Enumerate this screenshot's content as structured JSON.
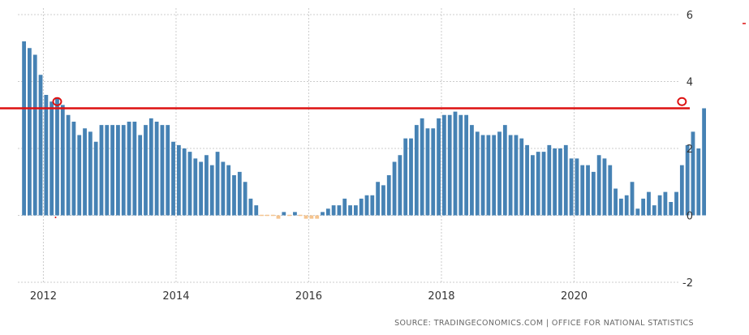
{
  "chart_data": {
    "type": "bar",
    "title": "",
    "xlabel": "",
    "ylabel": "",
    "ylim": [
      -2,
      6
    ],
    "grid": true,
    "x_start": "2011-09",
    "y_ticks": [
      {
        "value": 6,
        "label": "6"
      },
      {
        "value": 4,
        "label": "4"
      },
      {
        "value": 2,
        "label": "2"
      },
      {
        "value": 0,
        "label": "0"
      },
      {
        "value": -2,
        "label": "-2"
      }
    ],
    "x_ticks": [
      {
        "date": "2012-01",
        "label": "2012"
      },
      {
        "date": "2014-01",
        "label": "2014"
      },
      {
        "date": "2016-01",
        "label": "2016"
      },
      {
        "date": "2018-01",
        "label": "2018"
      },
      {
        "date": "2020-01",
        "label": "2020"
      }
    ],
    "values": [
      5.2,
      5.0,
      4.8,
      4.2,
      3.6,
      3.4,
      3.5,
      3.3,
      3.0,
      2.8,
      2.4,
      2.6,
      2.5,
      2.2,
      2.7,
      2.7,
      2.7,
      2.7,
      2.7,
      2.8,
      2.8,
      2.4,
      2.7,
      2.9,
      2.8,
      2.7,
      2.7,
      2.2,
      2.1,
      2.0,
      1.9,
      1.7,
      1.6,
      1.8,
      1.5,
      1.9,
      1.6,
      1.5,
      1.2,
      1.3,
      1.0,
      0.5,
      0.3,
      0.0,
      0.0,
      0.0,
      -0.1,
      0.1,
      0.0,
      0.1,
      0.0,
      -0.1,
      -0.1,
      -0.1,
      0.1,
      0.2,
      0.3,
      0.3,
      0.5,
      0.3,
      0.3,
      0.5,
      0.6,
      0.6,
      1.0,
      0.9,
      1.2,
      1.6,
      1.8,
      2.3,
      2.3,
      2.7,
      2.9,
      2.6,
      2.6,
      2.9,
      3.0,
      3.0,
      3.1,
      3.0,
      3.0,
      2.7,
      2.5,
      2.4,
      2.4,
      2.4,
      2.5,
      2.7,
      2.4,
      2.4,
      2.3,
      2.1,
      1.8,
      1.9,
      1.9,
      2.1,
      2.0,
      2.0,
      2.1,
      1.7,
      1.7,
      1.5,
      1.5,
      1.3,
      1.8,
      1.7,
      1.5,
      0.8,
      0.5,
      0.6,
      1.0,
      0.2,
      0.5,
      0.7,
      0.3,
      0.6,
      0.7,
      0.4,
      0.7,
      1.5,
      2.1,
      2.5,
      2.0,
      3.2
    ],
    "annotations": {
      "reference_line_value": 3.2,
      "reference_line_color": "#dd1111",
      "markers": [
        {
          "date": "2012-03",
          "value": 3.4
        },
        {
          "date": "2021-08",
          "value": 3.4
        }
      ]
    },
    "colors": {
      "positive": "#4682b4",
      "negative": "#f5c48f",
      "grid": "#cccccc",
      "annotation": "#dd1111"
    },
    "source_text": "SOURCE: TRADINGECONOMICS.COM | OFFICE FOR NATIONAL STATISTICS"
  }
}
